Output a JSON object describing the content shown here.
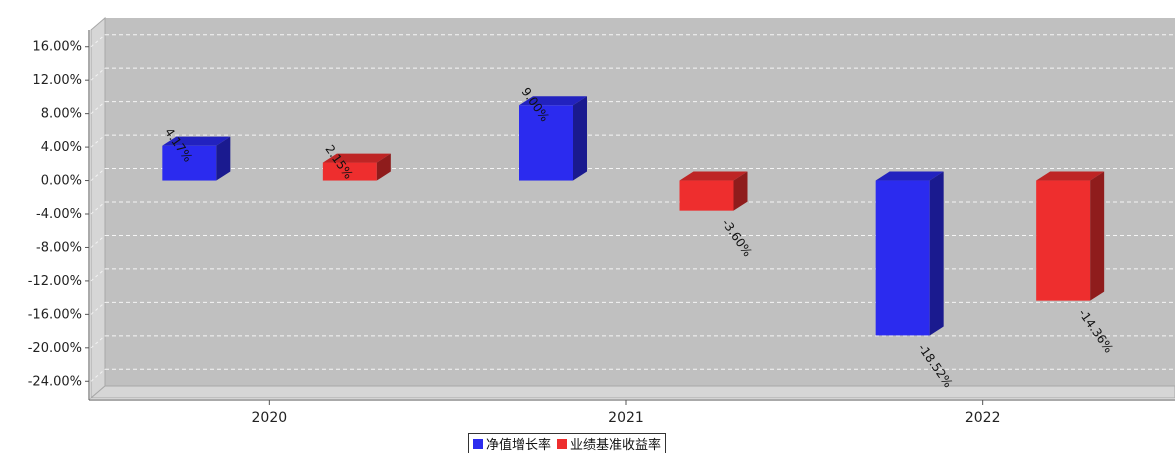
{
  "chart_data": {
    "type": "bar",
    "title": "",
    "xlabel": "",
    "ylabel": "",
    "categories": [
      "2020",
      "2021",
      "2022"
    ],
    "series": [
      {
        "name": "净值增长率",
        "color": "#2b2bef",
        "values": [
          4.17,
          9.0,
          -18.52
        ],
        "labels": [
          "4.17%",
          "9.00%",
          "-18.52%"
        ]
      },
      {
        "name": "业绩基准收益率",
        "color": "#ee2e2e",
        "values": [
          2.15,
          -3.6,
          -14.36
        ],
        "labels": [
          "2.15%",
          "-3.60%",
          "-14.36%"
        ]
      }
    ],
    "ylim": [
      -26,
      18
    ],
    "yticks": [
      16,
      12,
      8,
      4,
      0,
      -4,
      -8,
      -12,
      -16,
      -20,
      -24
    ],
    "ytick_labels": [
      "16.00%",
      "12.00%",
      "8.00%",
      "4.00%",
      "0.00%",
      "-4.00%",
      "-8.00%",
      "-12.00%",
      "-16.00%",
      "-20.00%",
      "-24.00%"
    ],
    "grid": true,
    "legend_position": "bottom-center",
    "plot_background": "#c0c0c0"
  }
}
